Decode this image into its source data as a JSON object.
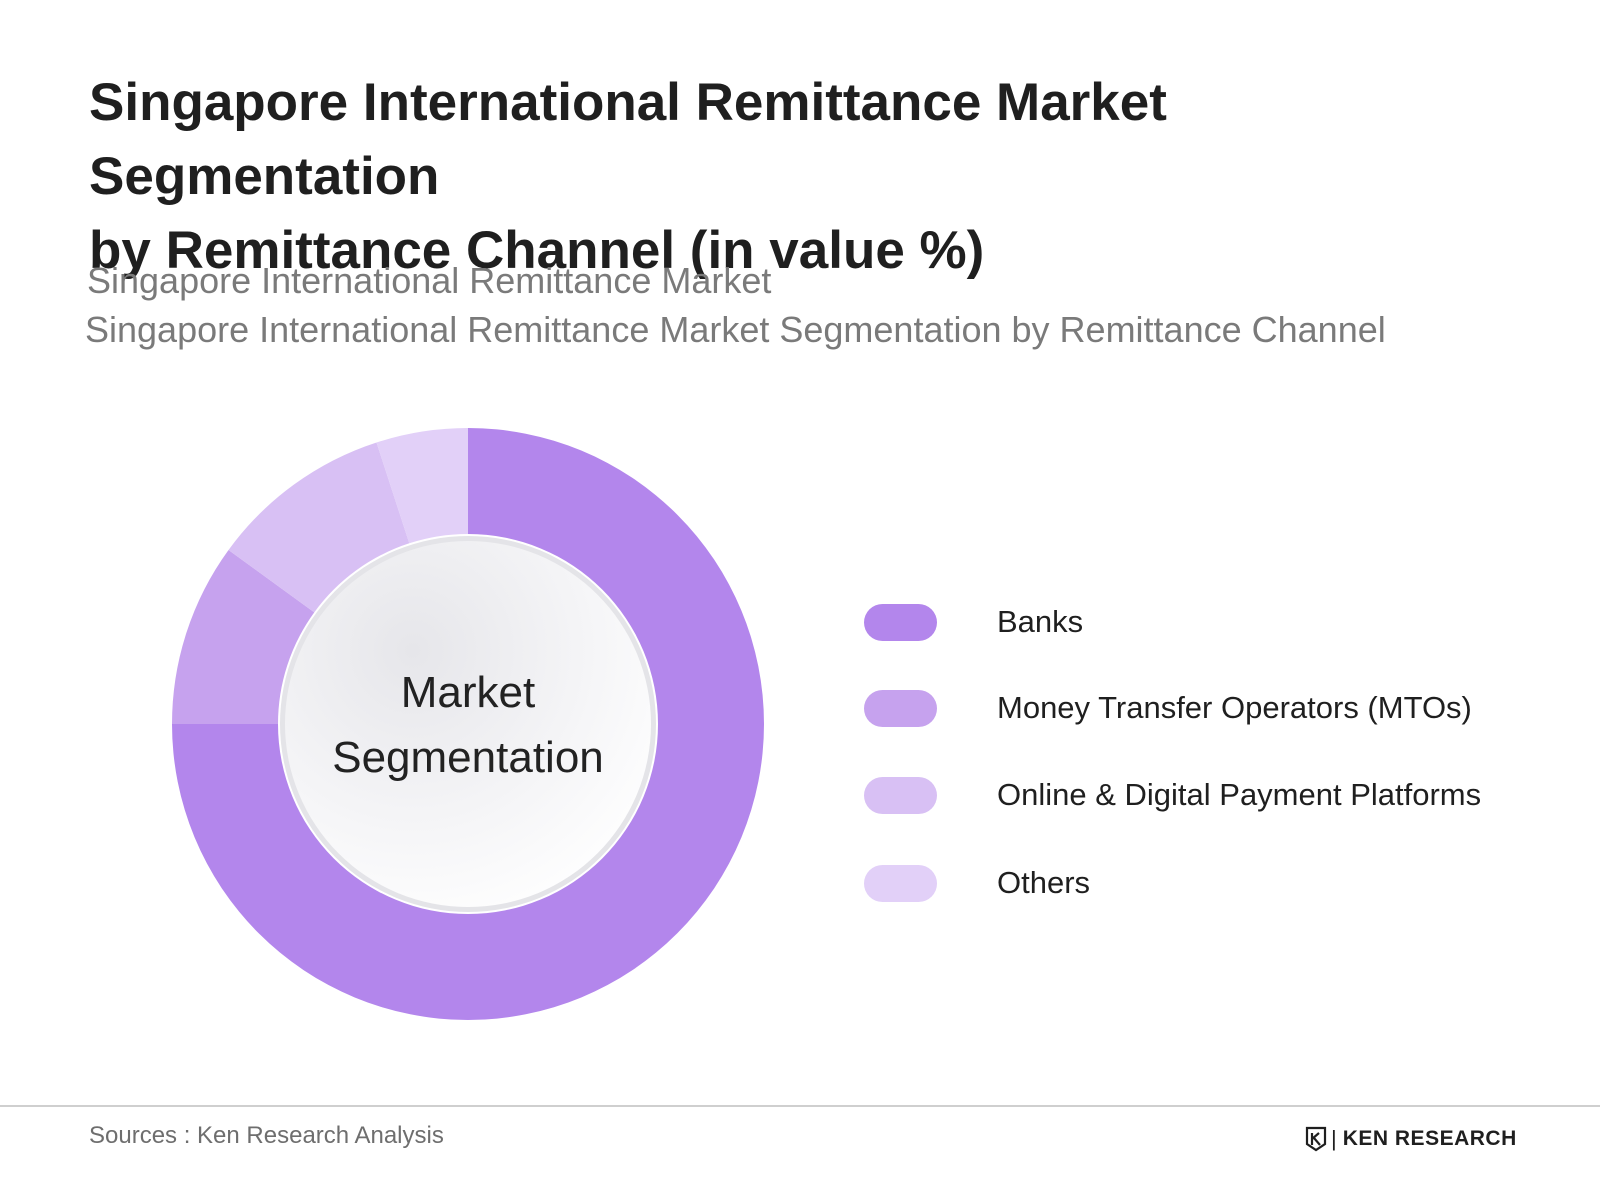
{
  "title_line1": "Singapore International Remittance Market Segmentation",
  "title_line2": "by Remittance Channel (in value %)",
  "subtitle_line1": "Singapore International Remittance Market",
  "subtitle_line2": "Singapore International Remittance Market Segmentation by Remittance Channel",
  "center_label_line1": "Market",
  "center_label_line2": "Segmentation",
  "source": "Sources : Ken Research Analysis",
  "brand": "KEN RESEARCH",
  "brand_icon": "ken-research-logo-icon",
  "chart_data": {
    "type": "pie",
    "variant": "donut",
    "categories": [
      "Banks",
      "Money Transfer Operators (MTOs)",
      "Online & Digital Payment Platforms",
      "Others"
    ],
    "values": [
      75,
      10,
      10,
      5
    ],
    "colors": [
      "#b386ec",
      "#c6a2ee",
      "#d8c0f4",
      "#e2d0f8"
    ],
    "legend_placement": "right"
  }
}
